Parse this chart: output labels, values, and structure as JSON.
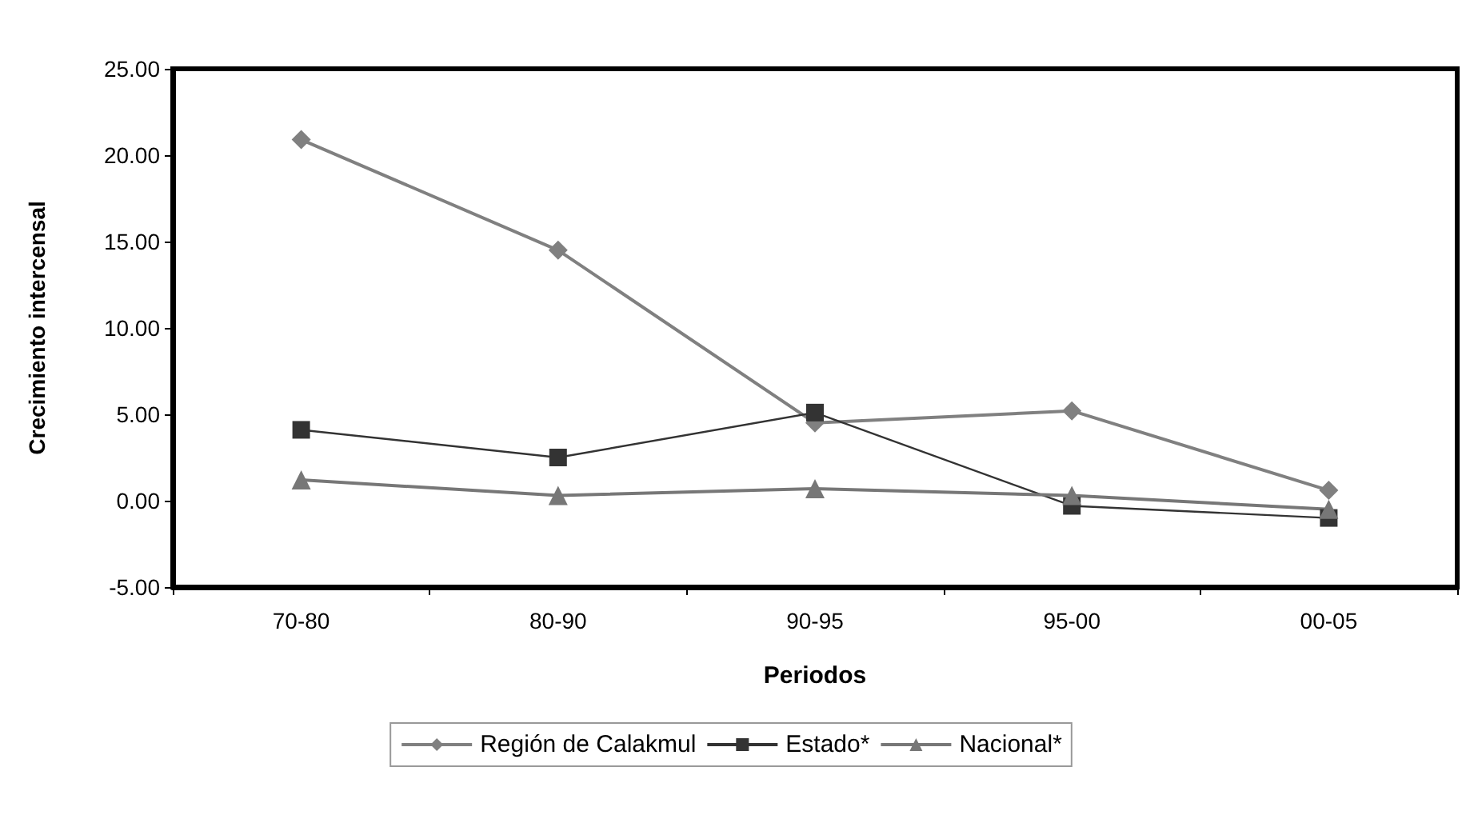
{
  "chart_data": {
    "type": "line",
    "xlabel": "Periodos",
    "ylabel": "Crecimiento intercensal",
    "categories": [
      "70-80",
      "80-90",
      "90-95",
      "95-00",
      "00-05"
    ],
    "series": [
      {
        "name": "Región de Calakmul",
        "color": "#808080",
        "marker": "diamond",
        "values": [
          20.9,
          14.5,
          4.5,
          5.2,
          0.6
        ]
      },
      {
        "name": "Estado*",
        "color": "#333333",
        "marker": "square",
        "values": [
          4.1,
          2.5,
          5.1,
          -0.3,
          -1.0
        ]
      },
      {
        "name": "Nacional*",
        "color": "#777777",
        "marker": "triangle",
        "values": [
          1.2,
          0.3,
          0.7,
          0.3,
          -0.5
        ]
      }
    ],
    "ylim": [
      -5,
      25
    ],
    "yticks": [
      {
        "value": -5,
        "label": "-5.00"
      },
      {
        "value": 0,
        "label": "0.00"
      },
      {
        "value": 5,
        "label": "5.00"
      },
      {
        "value": 10,
        "label": "10.00"
      },
      {
        "value": 15,
        "label": "15.00"
      },
      {
        "value": 20,
        "label": "20.00"
      },
      {
        "value": 25,
        "label": "25.00"
      }
    ],
    "legend": "bottom"
  }
}
